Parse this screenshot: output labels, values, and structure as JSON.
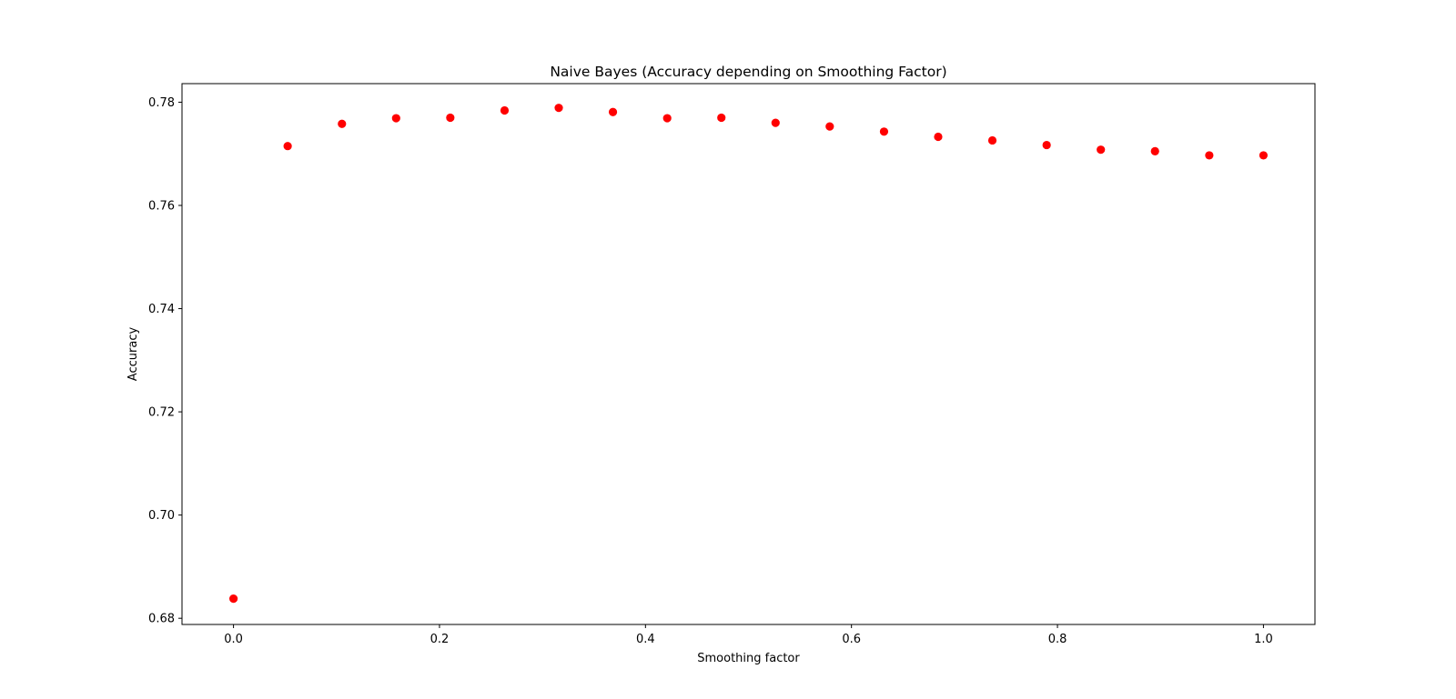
{
  "chart_data": {
    "type": "scatter",
    "title": "Naive Bayes (Accuracy depending on Smoothing Factor)",
    "xlabel": "Smoothing factor",
    "ylabel": "Accuracy",
    "xlim": [
      -0.05,
      1.05
    ],
    "ylim": [
      0.6788,
      0.7836
    ],
    "xticks": [
      0.0,
      0.2,
      0.4,
      0.6,
      0.8,
      1.0
    ],
    "xtick_labels": [
      "0.0",
      "0.2",
      "0.4",
      "0.6",
      "0.8",
      "1.0"
    ],
    "yticks": [
      0.68,
      0.7,
      0.72,
      0.74,
      0.76,
      0.78
    ],
    "ytick_labels": [
      "0.68",
      "0.70",
      "0.72",
      "0.74",
      "0.76",
      "0.78"
    ],
    "grid": false,
    "marker_color": "#ff0000",
    "x": [
      0.0,
      0.0526,
      0.1053,
      0.1579,
      0.2105,
      0.2632,
      0.3158,
      0.3684,
      0.4211,
      0.4737,
      0.5263,
      0.5789,
      0.6316,
      0.6842,
      0.7368,
      0.7895,
      0.8421,
      0.8947,
      0.9474,
      1.0
    ],
    "y": [
      0.6838,
      0.7715,
      0.7758,
      0.7769,
      0.777,
      0.7784,
      0.7789,
      0.7781,
      0.7769,
      0.777,
      0.776,
      0.7753,
      0.7743,
      0.7733,
      0.7726,
      0.7717,
      0.7708,
      0.7705,
      0.7697,
      0.7697
    ]
  }
}
